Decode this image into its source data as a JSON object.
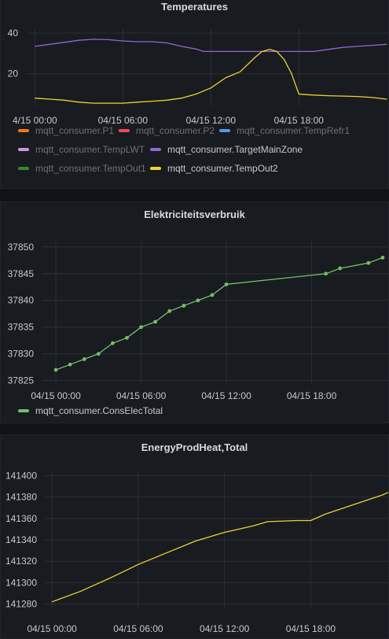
{
  "chart_data": [
    {
      "type": "line",
      "title": "Temperatures",
      "x_ticks": [
        "4/15 00:00",
        "04/15 06:00",
        "04/15 12:00",
        "04/15 18:00"
      ],
      "xlim_hours": [
        -0.5,
        24.2
      ],
      "ylim": [
        4,
        42
      ],
      "y_ticks": [
        20,
        40
      ],
      "series": [
        {
          "name": "mqtt_consumer.TargetMainZone",
          "color": "#8f68d6",
          "x": [
            0,
            1,
            2,
            3,
            4,
            5,
            6,
            7,
            8,
            9,
            10,
            11,
            11.5,
            12,
            13,
            14,
            15,
            16,
            17,
            18,
            19,
            20,
            21,
            22,
            23,
            24
          ],
          "y": [
            33.5,
            34.5,
            35.5,
            36.5,
            37,
            36.8,
            36.2,
            35.8,
            35.8,
            35.2,
            33.5,
            32.2,
            31,
            31,
            31,
            31,
            31,
            31,
            31,
            31,
            31,
            32,
            33,
            33.5,
            34,
            34.5
          ]
        },
        {
          "name": "mqtt_consumer.TempOut2",
          "color": "#f2d034",
          "x": [
            0,
            1,
            2,
            3,
            4,
            5,
            6,
            7,
            8,
            9,
            10,
            11,
            12,
            13,
            14,
            15,
            15.5,
            16,
            16.5,
            17,
            17.5,
            18,
            19,
            20,
            21,
            22,
            23,
            24
          ],
          "y": [
            8,
            7.5,
            7,
            6,
            5.5,
            5.5,
            5.5,
            6,
            6.5,
            7,
            8,
            10,
            13,
            18,
            21,
            28,
            31,
            32,
            31,
            27,
            20,
            10,
            9.5,
            9.2,
            9,
            8.8,
            8.3,
            7.5
          ]
        }
      ],
      "legend": [
        {
          "name": "mqtt_consumer.P1",
          "color": "#ff780a",
          "active": false
        },
        {
          "name": "mqtt_consumer.P2",
          "color": "#f2495c",
          "active": false
        },
        {
          "name": "mqtt_consumer.TempRefr1",
          "color": "#5794f2",
          "active": false
        },
        {
          "name": "mqtt_consumer.TempLWT",
          "color": "#ca95e5",
          "active": false
        },
        {
          "name": "mqtt_consumer.TargetMainZone",
          "color": "#8f68d6",
          "active": true
        },
        {
          "name": "mqtt_consumer.TempOut1",
          "color": "#37872d",
          "active": false
        },
        {
          "name": "mqtt_consumer.TempOut2",
          "color": "#f2d034",
          "active": true
        }
      ]
    },
    {
      "type": "line",
      "title": "Elektriciteitsverbruik",
      "x_ticks": [
        "04/15 00:00",
        "04/15 06:00",
        "04/15 12:00",
        "04/15 18:00"
      ],
      "xlim_hours": [
        -1.0,
        23.5
      ],
      "ylim": [
        37824.5,
        37851
      ],
      "y_ticks": [
        37825,
        37830,
        37835,
        37840,
        37845,
        37850
      ],
      "series": [
        {
          "name": "mqtt_consumer.ConsElecTotal",
          "color": "#73bf69",
          "x": [
            0,
            1,
            2,
            3,
            4,
            5,
            6,
            7,
            8,
            9,
            10,
            11,
            12,
            19,
            20,
            22,
            23
          ],
          "y": [
            37827,
            37828,
            37829,
            37830,
            37832,
            37833,
            37835,
            37836,
            37838,
            37839,
            37840,
            37841,
            37843,
            37845,
            37846,
            37847,
            37848
          ]
        }
      ],
      "legend": [
        {
          "name": "mqtt_consumer.ConsElecTotal",
          "color": "#73bf69",
          "active": true
        }
      ]
    },
    {
      "type": "line",
      "title": "EnergyProdHeat,Total",
      "x_ticks": [
        "04/15 00:00",
        "04/15 06:00",
        "04/15 12:00",
        "04/15 18:00"
      ],
      "xlim_hours": [
        -0.5,
        23.5
      ],
      "ylim": [
        141276,
        141404
      ],
      "y_ticks": [
        141280,
        141300,
        141320,
        141340,
        141360,
        141380,
        141400
      ],
      "series": [
        {
          "name": "",
          "color": "#f2d034",
          "x": [
            0,
            2,
            4,
            6,
            8,
            10,
            12,
            14,
            15,
            17,
            18,
            19,
            21,
            23,
            23.5
          ],
          "y": [
            141282,
            141292,
            141304,
            141317,
            141328,
            141339,
            141347,
            141353,
            141357,
            141358,
            141358,
            141364,
            141373,
            141382,
            141385
          ]
        }
      ],
      "legend": []
    }
  ]
}
